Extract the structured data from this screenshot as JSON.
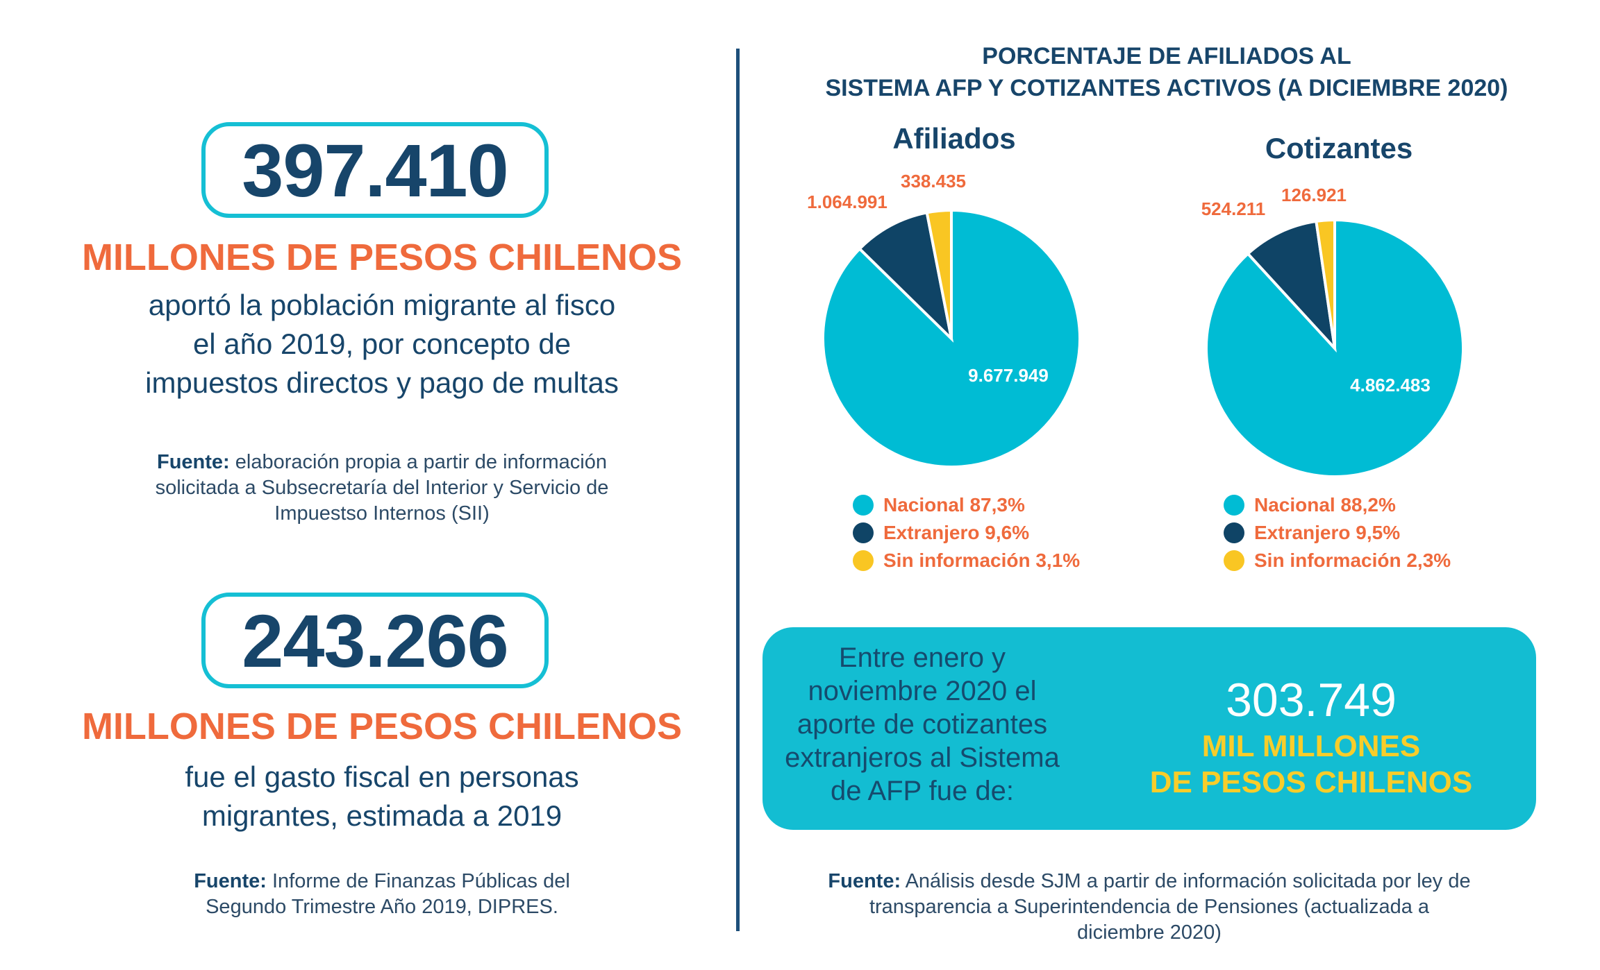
{
  "left": {
    "stat1": {
      "number": "397.410",
      "unit": "MILLONES DE PESOS CHILENOS",
      "desc_lines": [
        "aportó la población migrante al fisco",
        "el año 2019, por concepto de",
        "impuestos directos y pago de multas"
      ],
      "source_label": "Fuente:",
      "source_lines": [
        " elaboración propia a partir de información",
        "solicitada a Subsecretaría del Interior y Servicio de",
        "Impuestso Internos (SII)"
      ]
    },
    "stat2": {
      "number": "243.266",
      "unit": "MILLONES DE PESOS CHILENOS",
      "desc_lines": [
        "fue el gasto fiscal en personas",
        "migrantes, estimada a 2019"
      ],
      "source_label": "Fuente:",
      "source_lines": [
        " Informe de Finanzas Públicas del",
        "Segundo Trimestre Año 2019, DIPRES."
      ]
    }
  },
  "colors": {
    "nacional": "#00bcd4",
    "extranjero": "#0f4466",
    "sin_informacion": "#f9c623",
    "label_orange": "#ef6a3c"
  },
  "chart_data": {
    "type": "pie",
    "title_lines": [
      "PORCENTAJE DE AFILIADOS AL",
      "SISTEMA AFP Y COTIZANTES ACTIVOS (A DICIEMBRE 2020)"
    ],
    "charts": [
      {
        "name": "Afiliados",
        "slices": [
          {
            "category": "Nacional",
            "value": 9677949,
            "value_label": "9.677.949",
            "legend": "Nacional 87,3%",
            "color": "#00bcd4"
          },
          {
            "category": "Extranjero",
            "value": 1064991,
            "value_label": "1.064.991",
            "legend": "Extranjero 9,6%",
            "color": "#0f4466"
          },
          {
            "category": "Sin información",
            "value": 338435,
            "value_label": "338.435",
            "legend": "Sin información 3,1%",
            "color": "#f9c623"
          }
        ]
      },
      {
        "name": "Cotizantes",
        "slices": [
          {
            "category": "Nacional",
            "value": 4862483,
            "value_label": "4.862.483",
            "legend": "Nacional 88,2%",
            "color": "#00bcd4"
          },
          {
            "category": "Extranjero",
            "value": 524211,
            "value_label": "524.211",
            "legend": "Extranjero 9,5%",
            "color": "#0f4466"
          },
          {
            "category": "Sin información",
            "value": 126921,
            "value_label": "126.921",
            "legend": "Sin información 2,3%",
            "color": "#f9c623"
          }
        ]
      }
    ]
  },
  "callout": {
    "text_lines": [
      "Entre enero y",
      "noviembre 2020 el",
      "aporte de cotizantes",
      "extranjeros al Sistema",
      "de AFP fue de:"
    ],
    "number": "303.749",
    "unit_lines": [
      "MIL MILLONES",
      "DE PESOS CHILENOS"
    ]
  },
  "right_source": {
    "label": "Fuente:",
    "lines": [
      " Análisis desde SJM a partir de información solicitada por ley de",
      "transparencia a Superintendencia de Pensiones (actualizada a",
      "diciembre 2020)"
    ]
  }
}
